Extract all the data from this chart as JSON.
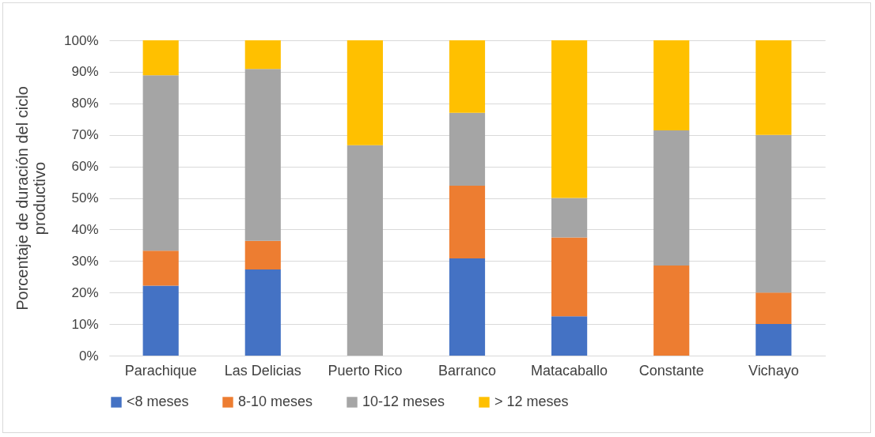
{
  "chart_data": {
    "type": "bar",
    "stacked": true,
    "ylabel": "Porcentaje de duración del ciclo productivo",
    "categories": [
      "Parachique",
      "Las Delicias",
      "Puerto Rico",
      "Barranco",
      "Matacaballo",
      "Constante",
      "Vichayo"
    ],
    "series": [
      {
        "name": "<8 meses",
        "color": "#4472c4",
        "values": [
          22.2,
          27.3,
          0,
          30.8,
          12.5,
          0,
          10
        ]
      },
      {
        "name": "8-10 meses",
        "color": "#ed7d31",
        "values": [
          11.1,
          9.1,
          0,
          23.1,
          25,
          28.6,
          10
        ]
      },
      {
        "name": "10-12 meses",
        "color": "#a5a5a5",
        "values": [
          55.6,
          54.5,
          66.7,
          23.1,
          12.5,
          42.8,
          50
        ]
      },
      {
        "name": "> 12 meses",
        "color": "#ffc000",
        "values": [
          11.1,
          9.1,
          33.3,
          23.0,
          50,
          28.6,
          30
        ]
      }
    ],
    "ylim": [
      0,
      100
    ],
    "yticks": [
      {
        "value": 0,
        "label": "0%"
      },
      {
        "value": 10,
        "label": "10%"
      },
      {
        "value": 20,
        "label": "20%"
      },
      {
        "value": 30,
        "label": "30%"
      },
      {
        "value": 40,
        "label": "40%"
      },
      {
        "value": 50,
        "label": "50%"
      },
      {
        "value": 60,
        "label": "60%"
      },
      {
        "value": 70,
        "label": "70%"
      },
      {
        "value": 80,
        "label": "80%"
      },
      {
        "value": 90,
        "label": "90%"
      },
      {
        "value": 100,
        "label": "100%"
      }
    ],
    "grid": "y",
    "legend": "bottom"
  }
}
